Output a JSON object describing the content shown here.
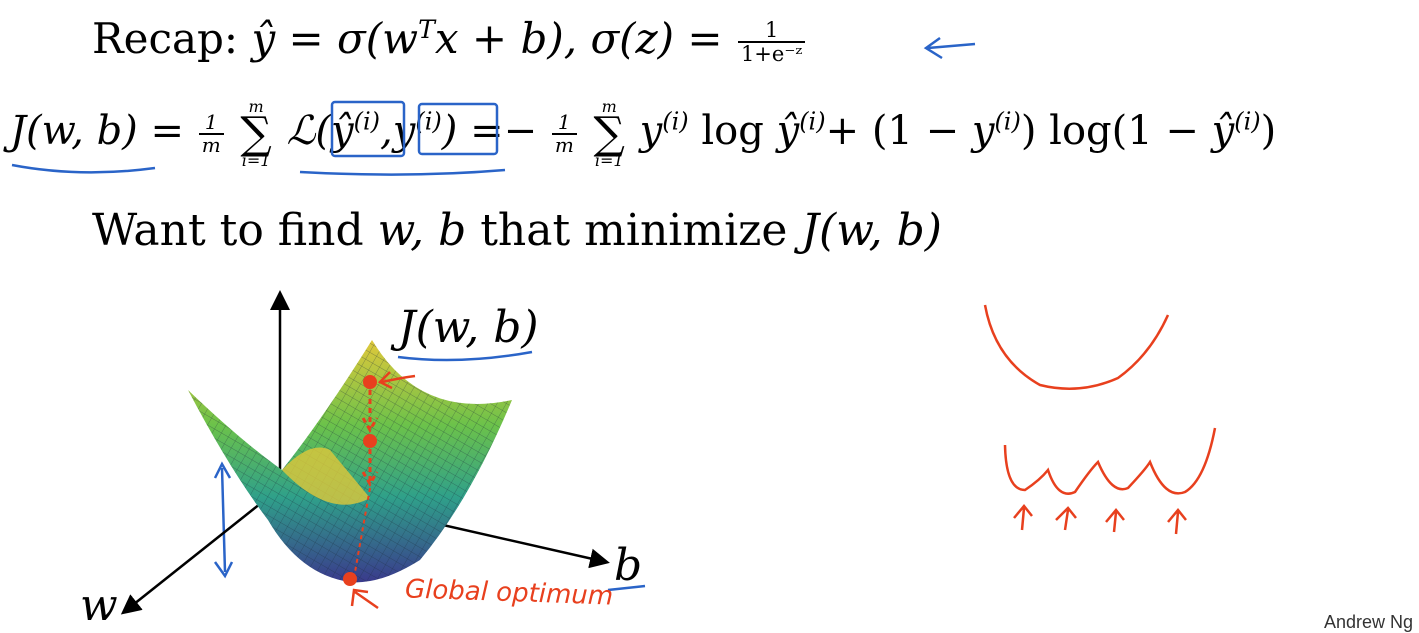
{
  "recap": {
    "label": "Recap:",
    "yhat_eq": "ŷ =  σ(w",
    "yhat_sup": "T",
    "yhat_rest": "x + b),",
    "sigma_eq": "σ(z) =",
    "sigma_num": "1",
    "sigma_den": "1+e⁻ᶻ"
  },
  "cost": {
    "lhs": "J(w, b)",
    "eq1": "=",
    "frac_num": "1",
    "frac_den": "m",
    "sum_top": "m",
    "sum_bottom": "i=1",
    "loss": "ℒ(",
    "yhat_i": "ŷ",
    "sup_i": "(i)",
    "comma": ",",
    "y_i": "y",
    "close": ")",
    "eq2": "=−",
    "term1_y": "y",
    "log1": "log",
    "term1_yhat": "ŷ",
    "plus": "+ (1 −",
    "term2_y": "y",
    "close2": ")",
    "log2": "log(1  −",
    "term2_yhat": "ŷ",
    "close3": ")"
  },
  "want": {
    "text_a": "Want to find",
    "vars": "w, b",
    "text_b": "that minimize",
    "func": "J(w, b)"
  },
  "plot": {
    "j_label": "J(w, b)",
    "b_label": "b",
    "w_label": "w",
    "annotation": "Global optimum"
  },
  "credit": "Andrew Ng",
  "colors": {
    "ink_blue": "#2a64c8",
    "ink_red": "#e8401e",
    "surface_low": "#3a3a8c",
    "surface_mid": "#2fa08a",
    "surface_high": "#e0c83a"
  }
}
